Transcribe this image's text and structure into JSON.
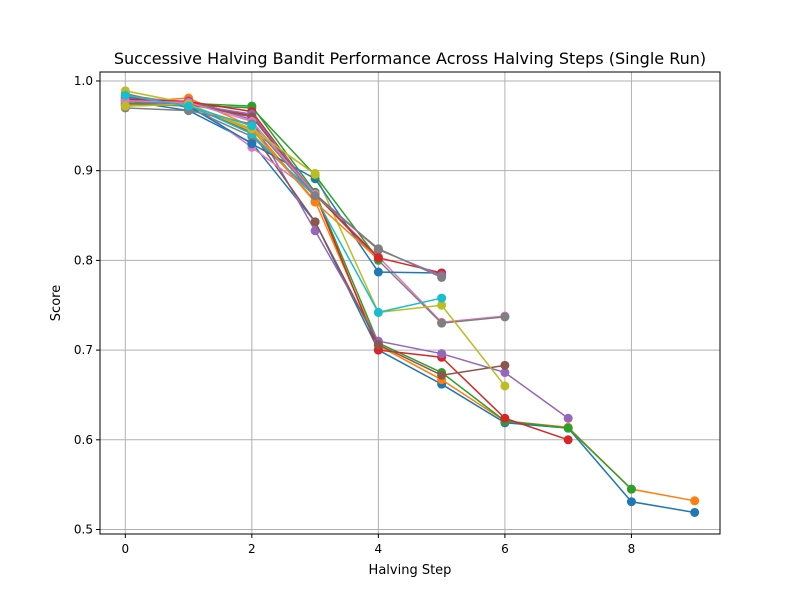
{
  "chart_data": {
    "type": "line",
    "title": "Successive Halving Bandit Performance Across Halving Steps (Single Run)",
    "xlabel": "Halving Step",
    "ylabel": "Score",
    "xlim": [
      -0.4,
      9.4
    ],
    "ylim": [
      0.495,
      1.01
    ],
    "xticks": [
      0,
      2,
      4,
      6,
      8
    ],
    "yticks": [
      0.5,
      0.6,
      0.7,
      0.8,
      0.9,
      1.0
    ],
    "xtick_labels": [
      "0",
      "2",
      "4",
      "6",
      "8"
    ],
    "ytick_labels": [
      "0.5",
      "0.6",
      "0.7",
      "0.8",
      "0.9",
      "1.0"
    ],
    "grid": true,
    "legend": false,
    "marker": "circle",
    "series": [
      {
        "color": "#1f77b4",
        "x": [
          0,
          1,
          2,
          3,
          4,
          5,
          6,
          7,
          8,
          9
        ],
        "y": [
          0.978,
          0.967,
          0.931,
          0.843,
          0.7,
          0.662,
          0.619,
          0.613,
          0.531,
          0.519
        ]
      },
      {
        "color": "#ff7f0e",
        "x": [
          0,
          1,
          2,
          3,
          4,
          5,
          6,
          7,
          8,
          9
        ],
        "y": [
          0.976,
          0.981,
          0.949,
          0.866,
          0.705,
          0.667,
          0.621,
          0.614,
          0.545,
          0.532
        ]
      },
      {
        "color": "#2ca02c",
        "x": [
          0,
          1,
          2,
          3,
          4,
          5,
          6,
          7,
          8
        ],
        "y": [
          0.984,
          0.975,
          0.972,
          0.876,
          0.708,
          0.675,
          0.621,
          0.613,
          0.545
        ]
      },
      {
        "color": "#d62728",
        "x": [
          0,
          1,
          2,
          3,
          4,
          5,
          6,
          7
        ],
        "y": [
          0.979,
          0.976,
          0.961,
          0.874,
          0.7,
          0.692,
          0.624,
          0.6
        ]
      },
      {
        "color": "#9467bd",
        "x": [
          0,
          1,
          2,
          3,
          4,
          5,
          6,
          7
        ],
        "y": [
          0.974,
          0.978,
          0.957,
          0.833,
          0.71,
          0.696,
          0.675,
          0.624
        ]
      },
      {
        "color": "#8c564b",
        "x": [
          0,
          1,
          2,
          3,
          4,
          5,
          6
        ],
        "y": [
          0.975,
          0.972,
          0.943,
          0.843,
          0.706,
          0.672,
          0.683
        ]
      },
      {
        "color": "#e377c2",
        "x": [
          0,
          1,
          2,
          3,
          4,
          5,
          6
        ],
        "y": [
          0.982,
          0.977,
          0.926,
          0.874,
          0.804,
          0.731,
          0.738
        ]
      },
      {
        "color": "#7f7f7f",
        "x": [
          0,
          1,
          2,
          3,
          4,
          5,
          6
        ],
        "y": [
          0.986,
          0.97,
          0.938,
          0.874,
          0.8,
          0.73,
          0.737
        ]
      },
      {
        "color": "#bcbd22",
        "x": [
          0,
          1,
          2,
          3,
          4,
          5,
          6
        ],
        "y": [
          0.989,
          0.975,
          0.944,
          0.897,
          0.742,
          0.75,
          0.66
        ]
      },
      {
        "color": "#17becf",
        "x": [
          0,
          1,
          2,
          3,
          4,
          5
        ],
        "y": [
          0.981,
          0.973,
          0.941,
          0.871,
          0.742,
          0.758
        ]
      },
      {
        "color": "#1f77b4",
        "x": [
          0,
          1,
          2,
          3,
          4,
          5
        ],
        "y": [
          0.983,
          0.972,
          0.93,
          0.891,
          0.787,
          0.786
        ]
      },
      {
        "color": "#ff7f0e",
        "x": [
          0,
          1,
          2,
          3,
          4
        ],
        "y": [
          0.973,
          0.974,
          0.946,
          0.865,
          0.801
        ]
      },
      {
        "color": "#2ca02c",
        "x": [
          0,
          1,
          2,
          3,
          4
        ],
        "y": [
          0.975,
          0.973,
          0.97,
          0.895,
          0.801
        ]
      },
      {
        "color": "#d62728",
        "x": [
          0,
          1,
          2,
          3,
          4,
          5
        ],
        "y": [
          0.98,
          0.977,
          0.966,
          0.873,
          0.803,
          0.786
        ]
      },
      {
        "color": "#9467bd",
        "x": [
          0,
          1,
          2,
          3,
          4,
          5
        ],
        "y": [
          0.977,
          0.974,
          0.963,
          0.874,
          0.812,
          0.783
        ]
      },
      {
        "color": "#8c564b",
        "x": [
          0,
          1,
          2,
          3,
          4
        ],
        "y": [
          0.972,
          0.974,
          0.96,
          0.873,
          0.812
        ]
      },
      {
        "color": "#e377c2",
        "x": [
          0,
          1,
          2,
          3
        ],
        "y": [
          0.978,
          0.976,
          0.955,
          0.874
        ]
      },
      {
        "color": "#7f7f7f",
        "x": [
          0,
          1,
          2,
          3,
          4,
          5
        ],
        "y": [
          0.97,
          0.967,
          0.952,
          0.872,
          0.813,
          0.781
        ]
      },
      {
        "color": "#bcbd22",
        "x": [
          0,
          1,
          2,
          3
        ],
        "y": [
          0.972,
          0.974,
          0.947,
          0.896
        ]
      },
      {
        "color": "#17becf",
        "x": [
          0,
          1,
          2
        ],
        "y": [
          0.984,
          0.972,
          0.95
        ]
      }
    ]
  }
}
